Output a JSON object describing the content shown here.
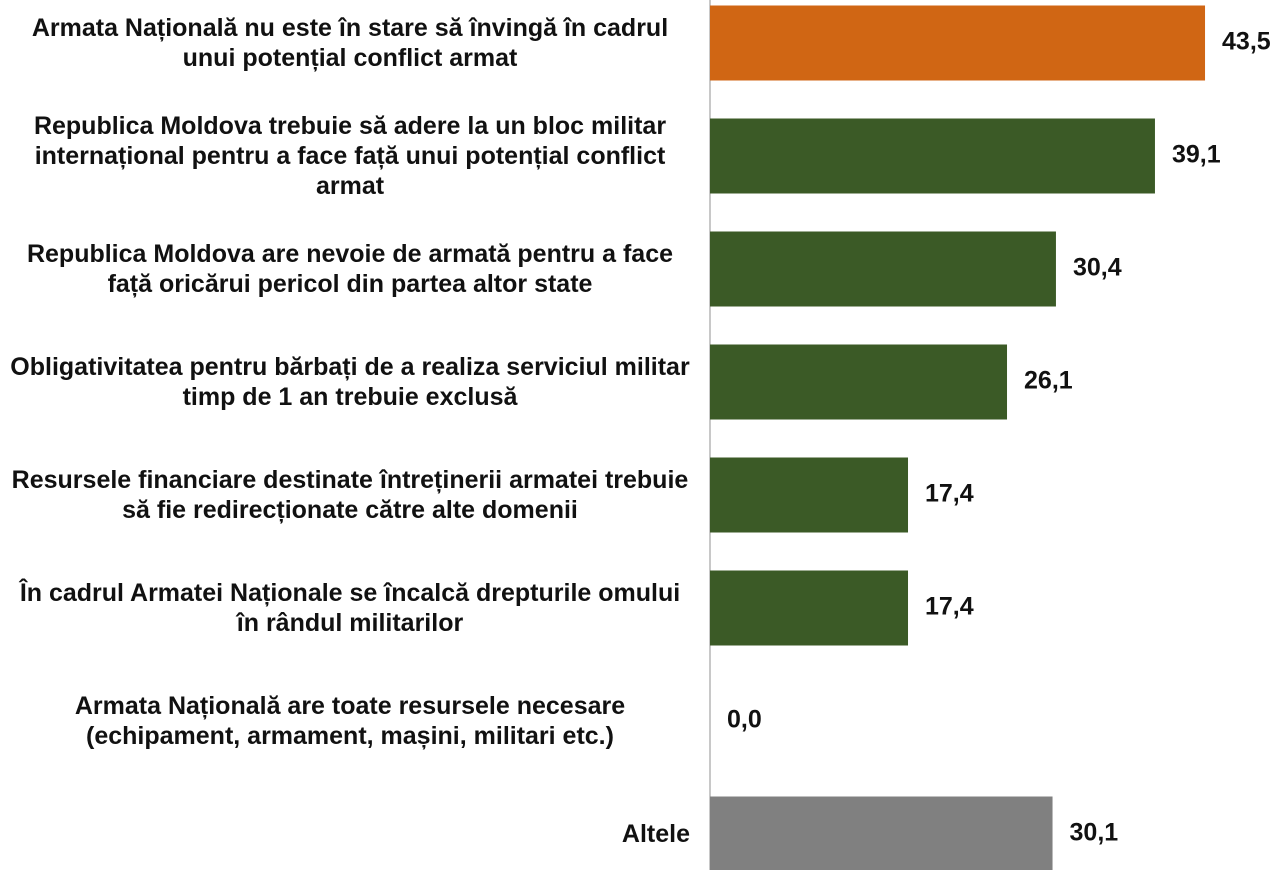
{
  "chart_data": {
    "type": "barh",
    "categories": [
      "Armata Națională nu este în stare să învingă în cadrul unui potențial conflict armat",
      "Republica Moldova trebuie să adere la un bloc militar internațional pentru a face față unui potențial conflict armat",
      "Republica Moldova are nevoie de armată pentru a face față oricărui pericol din partea altor state",
      "Obligativitatea pentru bărbați de a realiza serviciul militar timp de 1 an trebuie exclusă",
      "Resursele financiare destinate întreținerii armatei trebuie să fie redirecționate către alte domenii",
      "În cadrul Armatei Naționale se încalcă drepturile omului în rândul militarilor",
      "Armata Națională are toate resursele necesare (echipament, armament, mașini, militari etc.)",
      "Altele"
    ],
    "values": [
      43.5,
      39.1,
      30.4,
      26.1,
      17.4,
      17.4,
      0.0,
      30.1
    ],
    "value_labels": [
      "43,5",
      "39,1",
      "30,4",
      "26,1",
      "17,4",
      "17,4",
      "0,0",
      "30,1"
    ],
    "colors": [
      "#d06614",
      "#3b5a26",
      "#3b5a26",
      "#3b5a26",
      "#3b5a26",
      "#3b5a26",
      "#3b5a26",
      "#808080"
    ],
    "xlim": [
      0,
      50
    ]
  }
}
